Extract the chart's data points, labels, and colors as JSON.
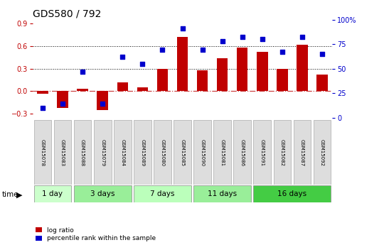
{
  "title": "GDS580 / 792",
  "samples": [
    "GSM15078",
    "GSM15083",
    "GSM15088",
    "GSM15079",
    "GSM15084",
    "GSM15089",
    "GSM15080",
    "GSM15085",
    "GSM15090",
    "GSM15081",
    "GSM15086",
    "GSM15091",
    "GSM15082",
    "GSM15087",
    "GSM15092"
  ],
  "log_ratio": [
    -0.03,
    -0.22,
    0.03,
    -0.25,
    0.12,
    0.05,
    0.3,
    0.72,
    0.28,
    0.44,
    0.58,
    0.52,
    0.3,
    0.62,
    0.22
  ],
  "percentile_rank": [
    10,
    14,
    47,
    14,
    62,
    55,
    69,
    91,
    69,
    78,
    82,
    80,
    67,
    82,
    65
  ],
  "bar_color": "#c00000",
  "dot_color": "#0000cc",
  "groups": [
    {
      "label": "1 day",
      "start": 0,
      "end": 2,
      "color": "#ccffcc"
    },
    {
      "label": "3 days",
      "start": 2,
      "end": 5,
      "color": "#99ee99"
    },
    {
      "label": "7 days",
      "start": 5,
      "end": 8,
      "color": "#bbffbb"
    },
    {
      "label": "11 days",
      "start": 8,
      "end": 11,
      "color": "#99ee99"
    },
    {
      "label": "16 days",
      "start": 11,
      "end": 15,
      "color": "#44cc44"
    }
  ],
  "ylim_left": [
    -0.35,
    0.95
  ],
  "yticks_left": [
    -0.3,
    0.0,
    0.3,
    0.6,
    0.9
  ],
  "yticks_right": [
    0,
    25,
    50,
    75,
    100
  ],
  "hlines": [
    0.3,
    0.6
  ],
  "background_color": "#ffffff",
  "dashed_line_color": "#cc4444",
  "title_fontsize": 10,
  "tick_fontsize": 7,
  "bar_label_fontsize": 5.0,
  "group_label_fontsize": 7.5
}
